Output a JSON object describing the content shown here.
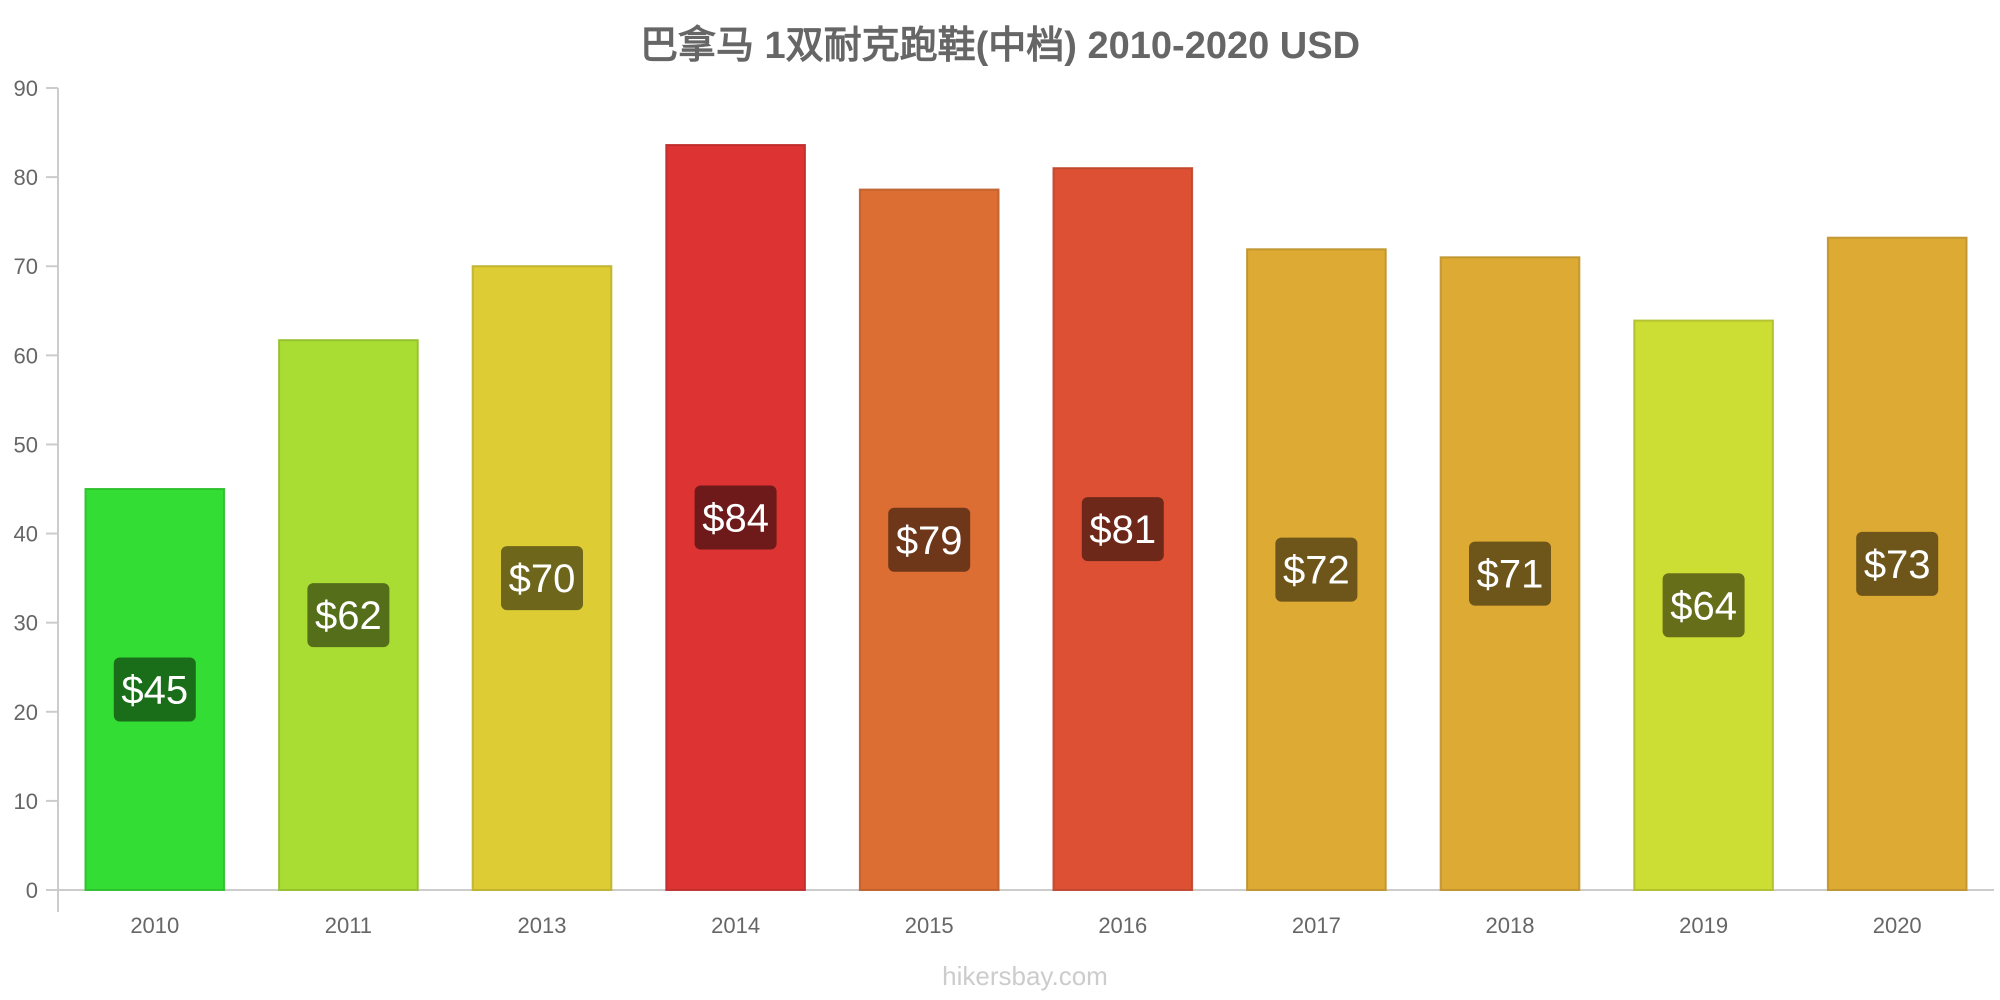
{
  "chart_data": {
    "type": "bar",
    "title": "巴拿马 1双耐克跑鞋(中档) 2010-2020 USD",
    "xlabel": "",
    "ylabel": "",
    "ylim": [
      0,
      90
    ],
    "y_ticks": [
      "0",
      "10",
      "20",
      "30",
      "40",
      "50",
      "60",
      "70",
      "80",
      "90"
    ],
    "grid": false,
    "categories": [
      "2010",
      "2011",
      "2013",
      "2014",
      "2015",
      "2016",
      "2017",
      "2018",
      "2019",
      "2020"
    ],
    "values": [
      45,
      61.7,
      70,
      83.6,
      78.6,
      81,
      71.9,
      71,
      63.9,
      73.2
    ],
    "data_labels": [
      "$45",
      "$62",
      "$70",
      "$84",
      "$79",
      "$81",
      "$72",
      "$71",
      "$64",
      "$73"
    ],
    "colors": [
      "#33dd33",
      "#aadd33",
      "#ddcc33",
      "#dd3333",
      "#dd6e33",
      "#dd5033",
      "#ddaa33",
      "#ddaa33",
      "#ccdd33",
      "#ddaa33"
    ],
    "label_bg_colors": [
      "#1a6e1a",
      "#556e1a",
      "#6e661a",
      "#6e1a1a",
      "#6e371a",
      "#6e281a",
      "#6e551a",
      "#6e551a",
      "#666e1a",
      "#6e551a"
    ]
  },
  "watermark": "hikersbay.com"
}
